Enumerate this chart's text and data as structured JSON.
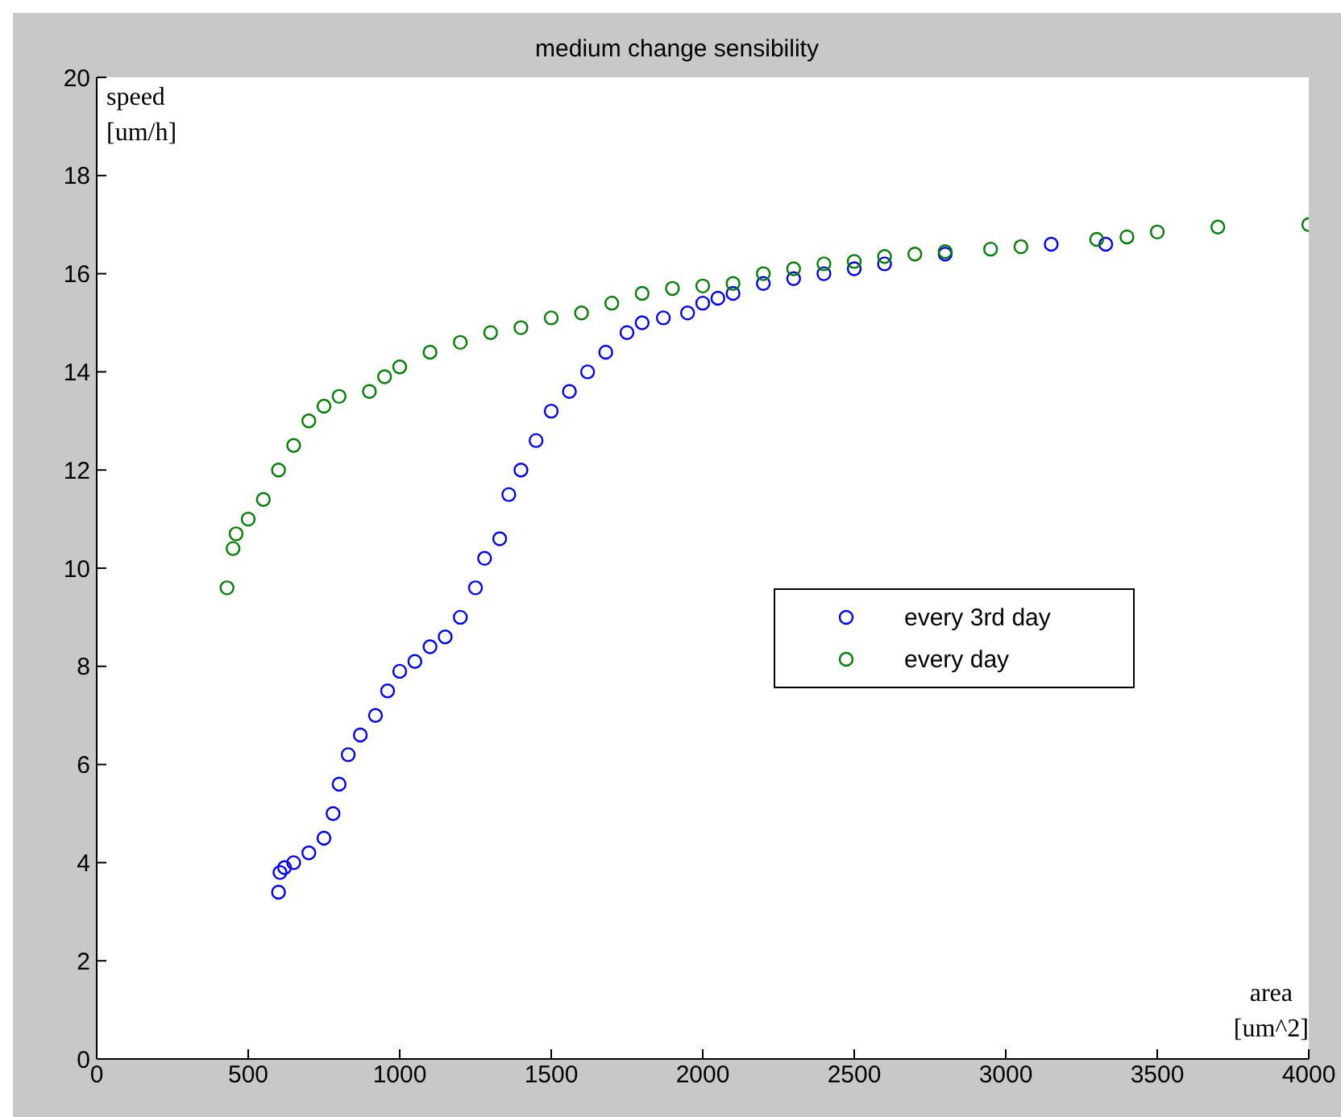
{
  "chart_data": {
    "type": "scatter",
    "title": "medium change sensibility",
    "xlabel": "area\n[um^2]",
    "ylabel": "speed\n[um/h]",
    "xlim": [
      0,
      4000
    ],
    "ylim": [
      0,
      20
    ],
    "xticks": [
      0,
      500,
      1000,
      1500,
      2000,
      2500,
      3000,
      3500,
      4000
    ],
    "yticks": [
      0,
      2,
      4,
      6,
      8,
      10,
      12,
      14,
      16,
      18,
      20
    ],
    "legend": "right",
    "marker": "circle",
    "series": [
      {
        "name": "every 3rd day",
        "color": "#0000ff",
        "x": [
          600,
          605,
          620,
          650,
          700,
          750,
          780,
          800,
          830,
          870,
          920,
          960,
          1000,
          1050,
          1100,
          1150,
          1200,
          1250,
          1280,
          1330,
          1360,
          1400,
          1450,
          1500,
          1560,
          1620,
          1680,
          1750,
          1800,
          1870,
          1950,
          2000,
          2050,
          2100,
          2200,
          2300,
          2400,
          2500,
          2600,
          2800,
          3150,
          3330
        ],
        "values": [
          3.4,
          3.8,
          3.9,
          4.0,
          4.2,
          4.5,
          5.0,
          5.6,
          6.2,
          6.6,
          7.0,
          7.5,
          7.9,
          8.1,
          8.4,
          8.6,
          9.0,
          9.6,
          10.2,
          10.6,
          11.5,
          12.0,
          12.6,
          13.2,
          13.6,
          14.0,
          14.4,
          14.8,
          15.0,
          15.1,
          15.2,
          15.4,
          15.5,
          15.6,
          15.8,
          15.9,
          16.0,
          16.1,
          16.2,
          16.4,
          16.6,
          16.6
        ]
      },
      {
        "name": "every day",
        "color": "#008000",
        "x": [
          430,
          450,
          460,
          500,
          550,
          600,
          650,
          700,
          750,
          800,
          900,
          950,
          1000,
          1100,
          1200,
          1300,
          1400,
          1500,
          1600,
          1700,
          1800,
          1900,
          2000,
          2100,
          2200,
          2300,
          2400,
          2500,
          2600,
          2700,
          2800,
          2950,
          3050,
          3300,
          3400,
          3500,
          3700,
          4000
        ],
        "values": [
          9.6,
          10.4,
          10.7,
          11.0,
          11.4,
          12.0,
          12.5,
          13.0,
          13.3,
          13.5,
          13.6,
          13.9,
          14.1,
          14.4,
          14.6,
          14.8,
          14.9,
          15.1,
          15.2,
          15.4,
          15.6,
          15.7,
          15.75,
          15.8,
          16.0,
          16.1,
          16.2,
          16.25,
          16.35,
          16.4,
          16.45,
          16.5,
          16.55,
          16.7,
          16.75,
          16.85,
          16.95,
          17.0
        ]
      }
    ]
  }
}
